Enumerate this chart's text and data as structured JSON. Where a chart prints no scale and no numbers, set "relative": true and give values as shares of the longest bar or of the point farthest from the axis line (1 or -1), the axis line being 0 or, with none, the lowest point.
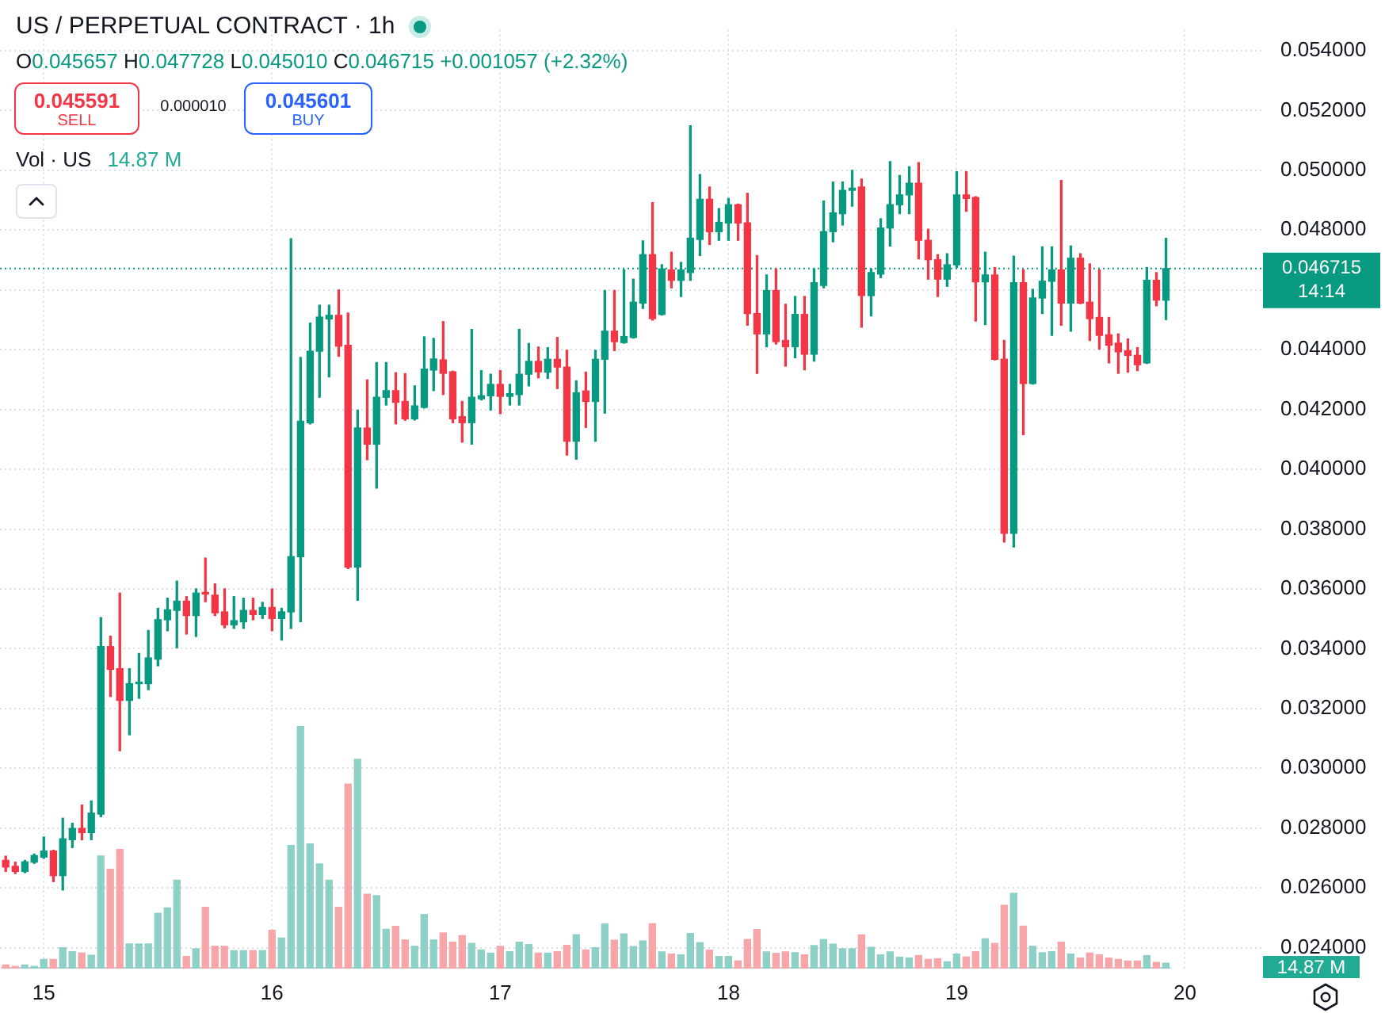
{
  "chart_data": [
    {
      "type": "candlestick",
      "title": "US / PERPETUAL CONTRACT · 1h",
      "x": [
        14.833,
        14.875,
        14.917,
        14.958,
        15,
        15.042,
        15.083,
        15.125,
        15.167,
        15.208,
        15.25,
        15.292,
        15.333,
        15.375,
        15.417,
        15.458,
        15.5,
        15.542,
        15.583,
        15.625,
        15.667,
        15.708,
        15.75,
        15.792,
        15.833,
        15.875,
        15.917,
        15.958,
        16,
        16.042,
        16.083,
        16.125,
        16.167,
        16.208,
        16.25,
        16.292,
        16.333,
        16.375,
        16.417,
        16.458,
        16.5,
        16.542,
        16.583,
        16.625,
        16.667,
        16.708,
        16.75,
        16.792,
        16.833,
        16.875,
        16.917,
        16.958,
        17,
        17.042,
        17.083,
        17.125,
        17.167,
        17.208,
        17.25,
        17.292,
        17.333,
        17.375,
        17.417,
        17.458,
        17.5,
        17.542,
        17.583,
        17.625,
        17.667,
        17.708,
        17.75,
        17.792,
        17.833,
        17.875,
        17.917,
        17.958,
        18,
        18.042,
        18.083,
        18.125,
        18.167,
        18.208,
        18.25,
        18.292,
        18.333,
        18.375,
        18.417,
        18.458,
        18.5,
        18.542,
        18.583,
        18.625,
        18.667,
        18.708,
        18.75,
        18.792,
        18.833,
        18.875,
        18.917,
        18.958,
        19,
        19.042,
        19.083,
        19.125,
        19.167,
        19.208,
        19.25,
        19.292,
        19.333,
        19.375,
        19.417,
        19.458,
        19.5,
        19.542,
        19.583,
        19.625,
        19.667,
        19.708,
        19.75,
        19.792,
        19.833,
        19.875,
        19.917
      ],
      "ohlc": [
        [
          0.02692,
          0.02706,
          0.02655,
          0.0267
        ],
        [
          0.02672,
          0.02686,
          0.02648,
          0.02655
        ],
        [
          0.02655,
          0.02692,
          0.02651,
          0.02687
        ],
        [
          0.02686,
          0.02713,
          0.02682,
          0.02708
        ],
        [
          0.02703,
          0.0277,
          0.02699,
          0.02723
        ],
        [
          0.02723,
          0.02726,
          0.02621,
          0.02641
        ],
        [
          0.02641,
          0.02833,
          0.02593,
          0.02764
        ],
        [
          0.02761,
          0.02816,
          0.02735,
          0.02799
        ],
        [
          0.02799,
          0.02877,
          0.02761,
          0.02785
        ],
        [
          0.02785,
          0.02891,
          0.02761,
          0.0285
        ],
        [
          0.02847,
          0.03504,
          0.02838,
          0.03407
        ],
        [
          0.03407,
          0.03442,
          0.0324,
          0.03331
        ],
        [
          0.03333,
          0.03586,
          0.03059,
          0.03227
        ],
        [
          0.03227,
          0.03333,
          0.03112,
          0.03283
        ],
        [
          0.03283,
          0.03384,
          0.03234,
          0.03287
        ],
        [
          0.03283,
          0.03461,
          0.03263,
          0.03369
        ],
        [
          0.03365,
          0.03535,
          0.03343,
          0.03497
        ],
        [
          0.03497,
          0.03569,
          0.0346,
          0.0353
        ],
        [
          0.03528,
          0.03626,
          0.03403,
          0.03559
        ],
        [
          0.03559,
          0.03574,
          0.03449,
          0.03511
        ],
        [
          0.03511,
          0.036,
          0.03441,
          0.03586
        ],
        [
          0.03586,
          0.03703,
          0.03557,
          0.03583
        ],
        [
          0.03579,
          0.03617,
          0.03511,
          0.0352
        ],
        [
          0.03523,
          0.036,
          0.0347,
          0.0348
        ],
        [
          0.0348,
          0.03574,
          0.03468,
          0.03494
        ],
        [
          0.0349,
          0.03569,
          0.03468,
          0.03528
        ],
        [
          0.03528,
          0.03569,
          0.03497,
          0.03514
        ],
        [
          0.03514,
          0.03555,
          0.03501,
          0.03538
        ],
        [
          0.03538,
          0.036,
          0.0346,
          0.03501
        ],
        [
          0.03501,
          0.03535,
          0.03429,
          0.03523
        ],
        [
          0.03523,
          0.04771,
          0.03468,
          0.03708
        ],
        [
          0.03708,
          0.04374,
          0.0349,
          0.04161
        ],
        [
          0.04156,
          0.04489,
          0.04152,
          0.04395
        ],
        [
          0.04395,
          0.04549,
          0.04241,
          0.04509
        ],
        [
          0.04503,
          0.04549,
          0.04309,
          0.04515
        ],
        [
          0.04515,
          0.046,
          0.04378,
          0.04412
        ],
        [
          0.04415,
          0.04523,
          0.03668,
          0.03673
        ],
        [
          0.03673,
          0.04198,
          0.03562,
          0.04138
        ],
        [
          0.04138,
          0.04299,
          0.04032,
          0.04084
        ],
        [
          0.04084,
          0.04357,
          0.03937,
          0.04241
        ],
        [
          0.04241,
          0.04357,
          0.04215,
          0.04263
        ],
        [
          0.04263,
          0.04323,
          0.04152,
          0.04224
        ],
        [
          0.04227,
          0.0432,
          0.04164,
          0.04169
        ],
        [
          0.04169,
          0.04279,
          0.04165,
          0.04212
        ],
        [
          0.04207,
          0.04443,
          0.04205,
          0.04335
        ],
        [
          0.04332,
          0.04438,
          0.04263,
          0.04369
        ],
        [
          0.04366,
          0.04494,
          0.0425,
          0.04321
        ],
        [
          0.04326,
          0.04328,
          0.04156,
          0.04169
        ],
        [
          0.04176,
          0.04227,
          0.04091,
          0.04156
        ],
        [
          0.04156,
          0.04468,
          0.04084,
          0.04241
        ],
        [
          0.04236,
          0.0433,
          0.04232,
          0.04246
        ],
        [
          0.04246,
          0.04318,
          0.04198,
          0.04284
        ],
        [
          0.04284,
          0.0433,
          0.04186,
          0.04244
        ],
        [
          0.04244,
          0.04284,
          0.04215,
          0.04253
        ],
        [
          0.0425,
          0.04468,
          0.04215,
          0.04318
        ],
        [
          0.04318,
          0.04421,
          0.04279,
          0.04361
        ],
        [
          0.04361,
          0.04409,
          0.04306,
          0.04326
        ],
        [
          0.04325,
          0.04407,
          0.04304,
          0.04368
        ],
        [
          0.04368,
          0.04441,
          0.0427,
          0.04342
        ],
        [
          0.04342,
          0.04398,
          0.04048,
          0.04094
        ],
        [
          0.04094,
          0.04296,
          0.04034,
          0.04256
        ],
        [
          0.04262,
          0.04325,
          0.0414,
          0.04227
        ],
        [
          0.04227,
          0.04398,
          0.04094,
          0.04368
        ],
        [
          0.04368,
          0.04598,
          0.04188,
          0.04462
        ],
        [
          0.04462,
          0.04598,
          0.04397,
          0.04427
        ],
        [
          0.04424,
          0.04667,
          0.04422,
          0.04444
        ],
        [
          0.04441,
          0.04636,
          0.04439,
          0.04559
        ],
        [
          0.04556,
          0.04764,
          0.04538,
          0.04718
        ],
        [
          0.04718,
          0.04892,
          0.04499,
          0.04504
        ],
        [
          0.04518,
          0.04684,
          0.04516,
          0.0467
        ],
        [
          0.04667,
          0.04726,
          0.04607,
          0.04632
        ],
        [
          0.04632,
          0.04692,
          0.04578,
          0.04667
        ],
        [
          0.04658,
          0.05149,
          0.04632,
          0.04773
        ],
        [
          0.04769,
          0.04986,
          0.04715,
          0.04903
        ],
        [
          0.04903,
          0.04944,
          0.04752,
          0.04795
        ],
        [
          0.04795,
          0.04872,
          0.04766,
          0.04826
        ],
        [
          0.04824,
          0.04906,
          0.04766,
          0.04885
        ],
        [
          0.04885,
          0.04887,
          0.04766,
          0.04824
        ],
        [
          0.04824,
          0.04923,
          0.04482,
          0.04521
        ],
        [
          0.04521,
          0.04715,
          0.04321,
          0.04453
        ],
        [
          0.04453,
          0.0465,
          0.0441,
          0.04598
        ],
        [
          0.04598,
          0.0467,
          0.04419,
          0.04427
        ],
        [
          0.04431,
          0.04552,
          0.04345,
          0.0441
        ],
        [
          0.0441,
          0.04578,
          0.04373,
          0.04518
        ],
        [
          0.04518,
          0.04578,
          0.04333,
          0.04385
        ],
        [
          0.04385,
          0.0467,
          0.04362,
          0.04624
        ],
        [
          0.04615,
          0.04897,
          0.04607,
          0.04795
        ],
        [
          0.04795,
          0.04961,
          0.04761,
          0.04858
        ],
        [
          0.04855,
          0.04961,
          0.04817,
          0.04933
        ],
        [
          0.04933,
          0.05,
          0.0488,
          0.0494
        ],
        [
          0.04944,
          0.04971,
          0.04475,
          0.04581
        ],
        [
          0.04581,
          0.0467,
          0.04513,
          0.04658
        ],
        [
          0.04653,
          0.04838,
          0.04641,
          0.04807
        ],
        [
          0.04807,
          0.05029,
          0.04747,
          0.04885
        ],
        [
          0.04885,
          0.04983,
          0.04855,
          0.04918
        ],
        [
          0.04918,
          0.05012,
          0.04855,
          0.04957
        ],
        [
          0.04957,
          0.05026,
          0.04704,
          0.04766
        ],
        [
          0.04766,
          0.04803,
          0.04636,
          0.04701
        ],
        [
          0.04701,
          0.04718,
          0.04578,
          0.04636
        ],
        [
          0.04636,
          0.04721,
          0.04612,
          0.04684
        ],
        [
          0.04684,
          0.04995,
          0.04675,
          0.04918
        ],
        [
          0.04918,
          0.04995,
          0.04863,
          0.04906
        ],
        [
          0.04909,
          0.04912,
          0.04496,
          0.04627
        ],
        [
          0.04627,
          0.04726,
          0.04484,
          0.0465
        ],
        [
          0.0465,
          0.04675,
          0.04366,
          0.04368
        ],
        [
          0.04368,
          0.04431,
          0.03757,
          0.03786
        ],
        [
          0.03786,
          0.04713,
          0.0374,
          0.04624
        ],
        [
          0.04624,
          0.04667,
          0.04116,
          0.04287
        ],
        [
          0.04287,
          0.04602,
          0.04285,
          0.04573
        ],
        [
          0.04573,
          0.04744,
          0.04521,
          0.04629
        ],
        [
          0.04629,
          0.04744,
          0.04448,
          0.04667
        ],
        [
          0.04667,
          0.04966,
          0.04482,
          0.04556
        ],
        [
          0.04556,
          0.04747,
          0.04462,
          0.04706
        ],
        [
          0.04706,
          0.04721,
          0.04554,
          0.04556
        ],
        [
          0.04559,
          0.04687,
          0.04431,
          0.04504
        ],
        [
          0.04508,
          0.04667,
          0.04402,
          0.04448
        ],
        [
          0.0445,
          0.04508,
          0.04356,
          0.04415
        ],
        [
          0.04422,
          0.04453,
          0.04321,
          0.04393
        ],
        [
          0.04397,
          0.04436,
          0.04325,
          0.04381
        ],
        [
          0.04381,
          0.04407,
          0.0433,
          0.0435
        ],
        [
          0.04356,
          0.04675,
          0.04354,
          0.04632
        ],
        [
          0.04632,
          0.04658,
          0.04547,
          0.04566
        ],
        [
          0.045657,
          0.047728,
          0.04501,
          0.046715
        ]
      ],
      "colors": [
        "#f23645",
        "#f23645",
        "#089981",
        "#089981",
        "#089981",
        "#f23645",
        "#089981",
        "#089981",
        "#f23645",
        "#089981",
        "#089981",
        "#f23645",
        "#f23645",
        "#089981",
        "#089981",
        "#089981",
        "#089981",
        "#089981",
        "#089981",
        "#f23645",
        "#089981",
        "#f23645",
        "#f23645",
        "#f23645",
        "#089981",
        "#089981",
        "#f23645",
        "#089981",
        "#f23645",
        "#089981",
        "#089981",
        "#089981",
        "#089981",
        "#089981",
        "#089981",
        "#f23645",
        "#f23645",
        "#089981",
        "#f23645",
        "#089981",
        "#089981",
        "#f23645",
        "#f23645",
        "#089981",
        "#089981",
        "#089981",
        "#f23645",
        "#f23645",
        "#f23645",
        "#089981",
        "#089981",
        "#089981",
        "#f23645",
        "#089981",
        "#089981",
        "#089981",
        "#f23645",
        "#089981",
        "#f23645",
        "#f23645",
        "#089981",
        "#f23645",
        "#089981",
        "#089981",
        "#f23645",
        "#089981",
        "#089981",
        "#089981",
        "#f23645",
        "#089981",
        "#f23645",
        "#089981",
        "#089981",
        "#089981",
        "#f23645",
        "#089981",
        "#089981",
        "#f23645",
        "#f23645",
        "#f23645",
        "#089981",
        "#f23645",
        "#f23645",
        "#089981",
        "#f23645",
        "#089981",
        "#089981",
        "#089981",
        "#089981",
        "#089981",
        "#f23645",
        "#089981",
        "#089981",
        "#089981",
        "#089981",
        "#089981",
        "#f23645",
        "#f23645",
        "#f23645",
        "#089981",
        "#089981",
        "#f23645",
        "#f23645",
        "#089981",
        "#f23645",
        "#f23645",
        "#089981",
        "#f23645",
        "#089981",
        "#089981",
        "#089981",
        "#f23645",
        "#089981",
        "#f23645",
        "#f23645",
        "#f23645",
        "#f23645",
        "#f23645",
        "#f23645",
        "#f23645",
        "#089981",
        "#f23645",
        "#089981"
      ],
      "xlim": [
        14.808,
        20.342
      ],
      "xticks": [
        15,
        16,
        17,
        18,
        19,
        20
      ],
      "ylim": [
        0.0233,
        0.0547
      ],
      "yticks": [
        {
          "value": 0.024,
          "label": "0.024000"
        },
        {
          "value": 0.026,
          "label": "0.026000"
        },
        {
          "value": 0.028,
          "label": "0.028000"
        },
        {
          "value": 0.03,
          "label": "0.030000"
        },
        {
          "value": 0.032,
          "label": "0.032000"
        },
        {
          "value": 0.034,
          "label": "0.034000"
        },
        {
          "value": 0.036,
          "label": "0.036000"
        },
        {
          "value": 0.038,
          "label": "0.038000"
        },
        {
          "value": 0.04,
          "label": "0.040000"
        },
        {
          "value": 0.042,
          "label": "0.042000"
        },
        {
          "value": 0.044,
          "label": "0.044000"
        },
        {
          "value": 0.046,
          "label": null
        },
        {
          "value": 0.048,
          "label": "0.048000"
        },
        {
          "value": 0.05,
          "label": "0.050000"
        },
        {
          "value": 0.052,
          "label": "0.052000"
        },
        {
          "value": 0.054,
          "label": "0.054000"
        }
      ],
      "ref_lines": [
        {
          "axis": "y",
          "value": 0.046715,
          "label": "0.046715",
          "color": "#089981",
          "line_style": "dotted"
        }
      ],
      "annotations": [
        "O0.045657 H0.047728 L0.045010 C0.046715 +0.001057 (+2.32%)",
        "0.045591",
        "SELL",
        "0.000010",
        "0.045601",
        "BUY",
        "14:14"
      ],
      "grid": true
    },
    {
      "type": "bar",
      "relative": true,
      "title": "Vol · US",
      "categories": [
        null,
        null,
        null,
        null,
        null,
        null,
        null,
        null,
        null,
        null,
        null,
        null,
        null,
        null,
        null,
        null,
        null,
        null,
        null,
        null,
        null,
        null,
        null,
        null,
        null,
        null,
        null,
        null,
        null,
        null,
        null,
        null,
        null,
        null,
        null,
        null,
        null,
        null,
        null,
        null,
        null,
        null,
        null,
        null,
        null,
        null,
        null,
        null,
        null,
        null,
        null,
        null,
        null,
        null,
        null,
        null,
        null,
        null,
        null,
        null,
        null,
        null,
        null,
        null,
        null,
        null,
        null,
        null,
        null,
        null,
        null,
        null,
        null,
        null,
        null,
        null,
        null,
        null,
        null,
        null,
        null,
        null,
        null,
        null,
        null,
        null,
        null,
        null,
        null,
        null,
        null,
        null,
        null,
        null,
        null,
        null,
        null,
        null,
        null,
        null,
        null,
        null,
        null,
        null,
        null,
        null,
        null,
        null,
        null,
        null,
        null,
        null,
        null,
        null,
        null,
        null,
        null,
        null,
        null,
        null,
        null,
        null,
        null
      ],
      "values": [
        0.015,
        0.009,
        0.015,
        0.009,
        0.038,
        0.038,
        0.086,
        0.07,
        0.064,
        0.055,
        0.464,
        0.41,
        0.491,
        0.102,
        0.102,
        0.102,
        0.228,
        0.25,
        0.365,
        0.05,
        0.082,
        0.253,
        0.092,
        0.092,
        0.074,
        0.074,
        0.074,
        0.074,
        0.158,
        0.126,
        0.508,
        1,
        0.514,
        0.432,
        0.365,
        0.253,
        0.761,
        0.863,
        0.307,
        0.301,
        0.162,
        0.174,
        0.118,
        0.092,
        0.223,
        0.118,
        0.147,
        0.109,
        0.136,
        0.104,
        0.077,
        0.064,
        0.092,
        0.07,
        0.109,
        0.099,
        0.064,
        0.064,
        0.07,
        0.096,
        0.14,
        0.077,
        0.086,
        0.184,
        0.117,
        0.143,
        0.091,
        0.114,
        0.185,
        0.069,
        0.06,
        0.057,
        0.145,
        0.107,
        0.076,
        0.05,
        0.05,
        0.032,
        0.12,
        0.161,
        0.069,
        0.063,
        0.069,
        0.066,
        0.057,
        0.095,
        0.12,
        0.101,
        0.082,
        0.082,
        0.139,
        0.088,
        0.057,
        0.069,
        0.047,
        0.044,
        0.054,
        0.038,
        0.041,
        0.028,
        0.06,
        0.048,
        0.07,
        0.123,
        0.104,
        0.261,
        0.311,
        0.175,
        0.092,
        0.066,
        0.07,
        0.109,
        0.06,
        0.044,
        0.064,
        0.057,
        0.044,
        0.038,
        0.031,
        0.031,
        0.053,
        0.026,
        0.022
      ],
      "colors": [
        "#f6a5a8",
        "#f6a5a8",
        "#8fd0c6",
        "#8fd0c6",
        "#8fd0c6",
        "#f6a5a8",
        "#8fd0c6",
        "#8fd0c6",
        "#f6a5a8",
        "#8fd0c6",
        "#8fd0c6",
        "#f6a5a8",
        "#f6a5a8",
        "#8fd0c6",
        "#8fd0c6",
        "#8fd0c6",
        "#8fd0c6",
        "#8fd0c6",
        "#8fd0c6",
        "#f6a5a8",
        "#8fd0c6",
        "#f6a5a8",
        "#f6a5a8",
        "#f6a5a8",
        "#8fd0c6",
        "#8fd0c6",
        "#f6a5a8",
        "#8fd0c6",
        "#f6a5a8",
        "#8fd0c6",
        "#8fd0c6",
        "#8fd0c6",
        "#8fd0c6",
        "#8fd0c6",
        "#8fd0c6",
        "#f6a5a8",
        "#f6a5a8",
        "#8fd0c6",
        "#f6a5a8",
        "#8fd0c6",
        "#8fd0c6",
        "#f6a5a8",
        "#f6a5a8",
        "#8fd0c6",
        "#8fd0c6",
        "#8fd0c6",
        "#f6a5a8",
        "#f6a5a8",
        "#f6a5a8",
        "#8fd0c6",
        "#8fd0c6",
        "#8fd0c6",
        "#f6a5a8",
        "#8fd0c6",
        "#8fd0c6",
        "#8fd0c6",
        "#f6a5a8",
        "#8fd0c6",
        "#f6a5a8",
        "#f6a5a8",
        "#8fd0c6",
        "#f6a5a8",
        "#8fd0c6",
        "#8fd0c6",
        "#f6a5a8",
        "#8fd0c6",
        "#8fd0c6",
        "#8fd0c6",
        "#f6a5a8",
        "#8fd0c6",
        "#f6a5a8",
        "#8fd0c6",
        "#8fd0c6",
        "#8fd0c6",
        "#f6a5a8",
        "#8fd0c6",
        "#8fd0c6",
        "#f6a5a8",
        "#f6a5a8",
        "#f6a5a8",
        "#8fd0c6",
        "#f6a5a8",
        "#f6a5a8",
        "#8fd0c6",
        "#f6a5a8",
        "#8fd0c6",
        "#8fd0c6",
        "#8fd0c6",
        "#8fd0c6",
        "#8fd0c6",
        "#f6a5a8",
        "#8fd0c6",
        "#8fd0c6",
        "#8fd0c6",
        "#8fd0c6",
        "#8fd0c6",
        "#f6a5a8",
        "#f6a5a8",
        "#f6a5a8",
        "#8fd0c6",
        "#8fd0c6",
        "#f6a5a8",
        "#f6a5a8",
        "#8fd0c6",
        "#f6a5a8",
        "#f6a5a8",
        "#8fd0c6",
        "#f6a5a8",
        "#8fd0c6",
        "#8fd0c6",
        "#8fd0c6",
        "#f6a5a8",
        "#8fd0c6",
        "#f6a5a8",
        "#f6a5a8",
        "#f6a5a8",
        "#f6a5a8",
        "#f6a5a8",
        "#f6a5a8",
        "#f6a5a8",
        "#8fd0c6",
        "#f6a5a8",
        "#8fd0c6"
      ],
      "annotations": [
        "14.87 M",
        "14.87 M"
      ],
      "tick_labels": false
    }
  ]
}
